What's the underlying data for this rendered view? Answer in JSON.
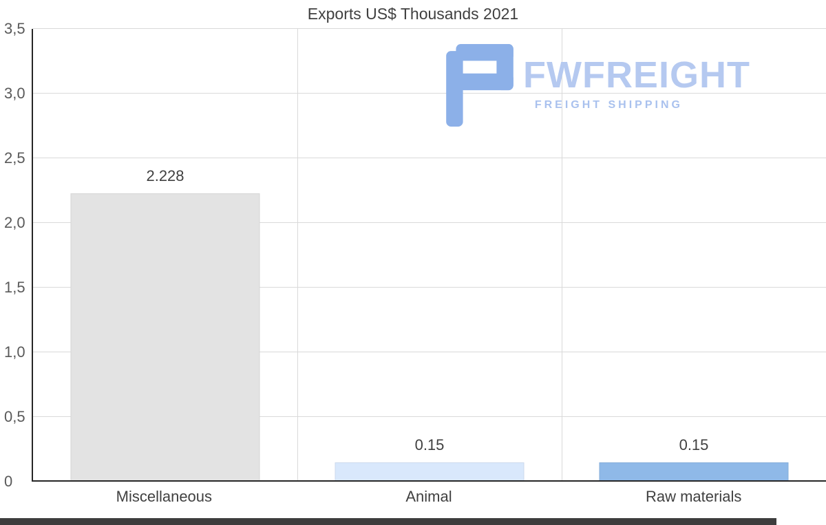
{
  "title": "Exports US$ Thousands 2021",
  "watermark": {
    "brand": "FWFREIGHT",
    "tagline": "FREIGHT SHIPPING",
    "icon_color": "#8cb0e8"
  },
  "chart_data": {
    "type": "bar",
    "title": "Exports US$ Thousands 2021",
    "categories": [
      "Miscellaneous",
      "Animal",
      "Raw materials"
    ],
    "values": [
      2.228,
      0.15,
      0.15
    ],
    "value_labels": [
      "2.228",
      "0.15",
      "0.15"
    ],
    "bar_colors": [
      "#e3e3e3",
      "#d9e8fc",
      "#8fb9e8"
    ],
    "xlabel": "",
    "ylabel": "",
    "ylim": [
      0,
      3.5
    ],
    "ytick_values": [
      0,
      0.5,
      1.0,
      1.5,
      2.0,
      2.5,
      3.0,
      3.5
    ],
    "ytick_labels": [
      "0",
      "0,5",
      "1,0",
      "1,5",
      "2,0",
      "2,5",
      "3,0",
      "3,5"
    ],
    "grid": "horizontal gridlines on, vertical category separators",
    "legend": "none"
  }
}
